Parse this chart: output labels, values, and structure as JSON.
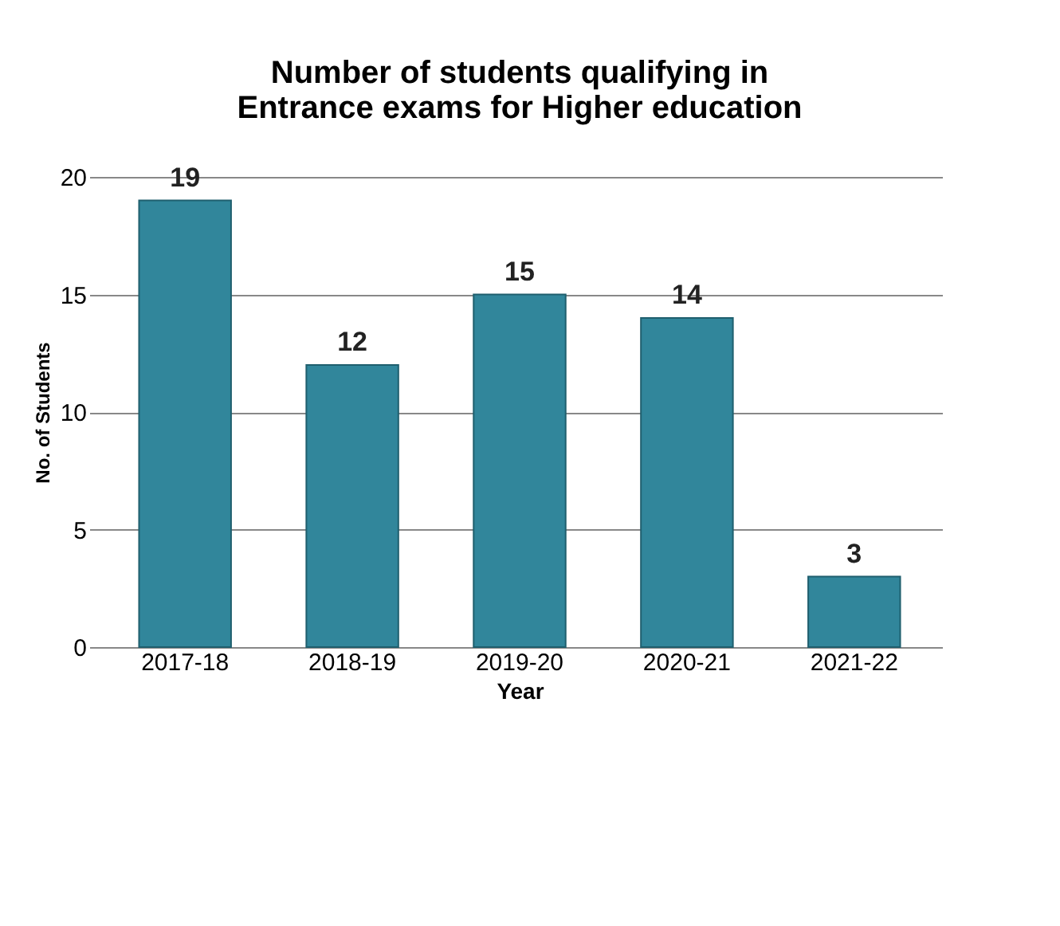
{
  "chart_data": {
    "type": "bar",
    "title": [
      "Number of students qualifying in",
      "Entrance exams for Higher education"
    ],
    "xlabel": "Year",
    "ylabel": "No. of Students",
    "categories": [
      "2017-18",
      "2018-19",
      "2019-20",
      "2020-21",
      "2021-22"
    ],
    "values": [
      19,
      12,
      15,
      14,
      3
    ],
    "color": "#31869b",
    "ylim": [
      0,
      20
    ],
    "yticks": [
      0,
      5,
      10,
      15,
      20
    ],
    "grid": "y",
    "data_labels": true
  }
}
